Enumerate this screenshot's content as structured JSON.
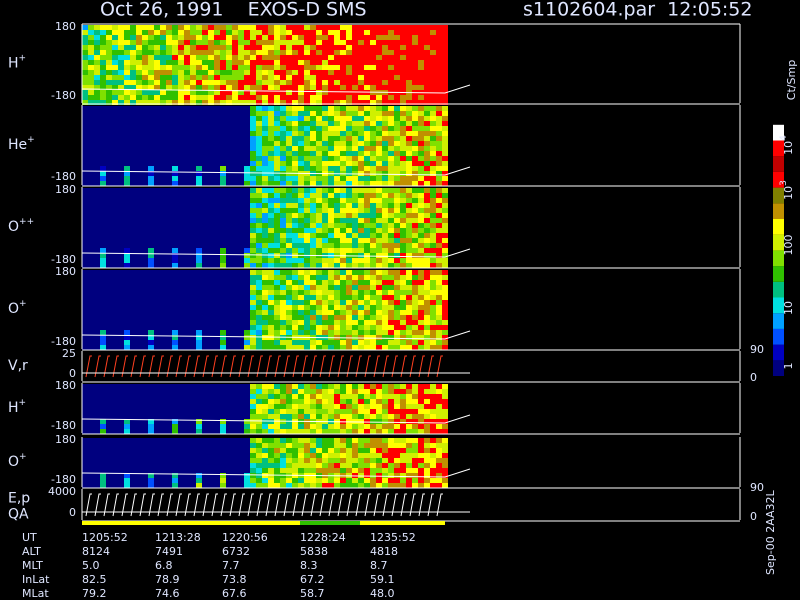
{
  "header": {
    "title": "Oct 26, 1991    EXOS-D SMS",
    "file": "s1102604.par  12:05:52"
  },
  "panels": [
    {
      "label": {
        "base": "H",
        "sup": "+"
      },
      "ticks": [
        "180",
        "-180"
      ]
    },
    {
      "label": {
        "base": "He",
        "sup": "+"
      },
      "ticks": [
        "-180"
      ]
    },
    {
      "label": {
        "base": "O",
        "sup": "++"
      },
      "ticks": [
        "180",
        "-180"
      ]
    },
    {
      "label": {
        "base": "O",
        "sup": "+"
      },
      "ticks": [
        "180",
        "-180"
      ]
    },
    {
      "label": {
        "base": "V,r"
      },
      "ticks": [
        "25",
        "0"
      ],
      "right_ticks": [
        "90",
        "0"
      ]
    },
    {
      "label": {
        "base": "H",
        "sup": "+"
      },
      "ticks": [
        "180",
        "-180"
      ]
    },
    {
      "label": {
        "base": "O",
        "sup": "+"
      },
      "ticks": [
        "180",
        "-180"
      ]
    },
    {
      "label": {
        "base": "E,p",
        "line2": "QA"
      },
      "ticks": [
        "4000",
        "0"
      ],
      "right_ticks": [
        "90",
        "0"
      ]
    }
  ],
  "colorbar": {
    "title": "Ct/Smp",
    "ticks": [
      {
        "base": "10",
        "sup": "4"
      },
      {
        "base": "10",
        "sup": "3"
      },
      {
        "base": "100"
      },
      {
        "base": "10"
      },
      {
        "base": "1"
      }
    ]
  },
  "ephemeris": {
    "rows": [
      {
        "label": "UT",
        "values": [
          "1205:52",
          "1213:28",
          "1220:56",
          "1228:24",
          "1235:52"
        ]
      },
      {
        "label": "ALT",
        "values": [
          "8124",
          "7491",
          "6732",
          "5838",
          "4818"
        ]
      },
      {
        "label": "MLT",
        "values": [
          "5.0",
          "6.8",
          "7.7",
          "8.3",
          "8.7"
        ]
      },
      {
        "label": "InLat",
        "values": [
          "82.5",
          "78.9",
          "73.8",
          "67.2",
          "59.1"
        ]
      },
      {
        "label": "MLat",
        "values": [
          "79.2",
          "74.6",
          "67.6",
          "58.7",
          "48.0"
        ]
      }
    ]
  },
  "footer": "Sep-00 2AA32L"
}
